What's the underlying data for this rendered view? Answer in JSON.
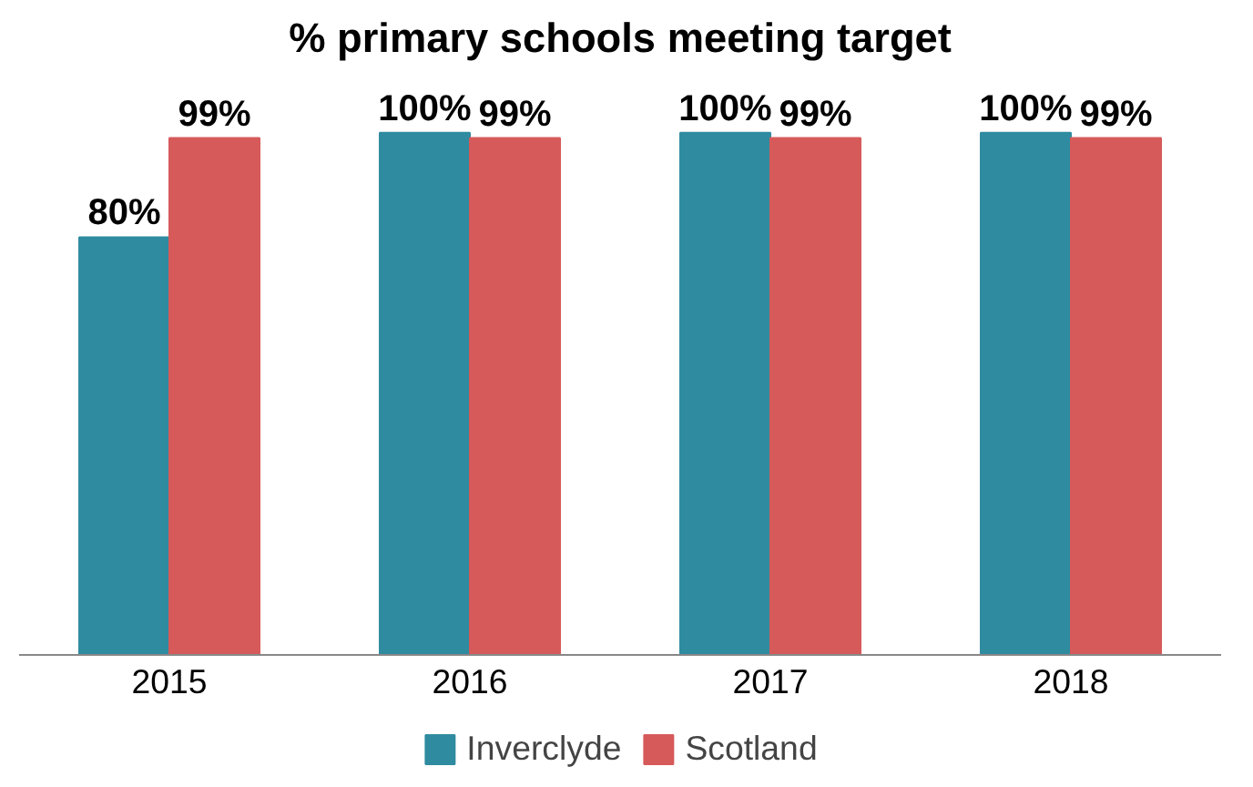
{
  "chart_data": {
    "type": "bar",
    "title": "% primary schools meeting target",
    "categories": [
      "2015",
      "2016",
      "2017",
      "2018"
    ],
    "series": [
      {
        "name": "Inverclyde",
        "color": "#2f8ba0",
        "values": [
          80,
          100,
          100,
          100
        ],
        "value_labels": [
          "80%",
          "100%",
          "100%",
          "100%"
        ]
      },
      {
        "name": "Scotland",
        "color": "#d75a5a",
        "values": [
          99,
          99,
          99,
          99
        ],
        "value_labels": [
          "99%",
          "99%",
          "99%",
          "99%"
        ]
      }
    ],
    "legend": "bottom"
  }
}
